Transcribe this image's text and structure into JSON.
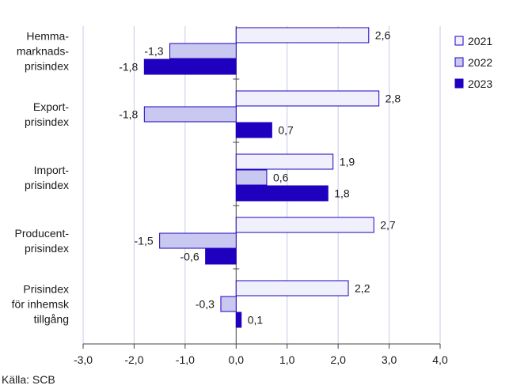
{
  "chart_data": {
    "type": "bar",
    "orientation": "horizontal",
    "categories": [
      [
        "Hemma-",
        "marknads-",
        "prisindex"
      ],
      [
        "Export-",
        "prisindex"
      ],
      [
        "Import-",
        "prisindex"
      ],
      [
        "Producent-",
        "prisindex"
      ],
      [
        "Prisindex",
        "för inhemsk",
        "tillgång"
      ]
    ],
    "series": [
      {
        "name": "2021",
        "values": [
          2.6,
          2.8,
          1.9,
          2.7,
          2.2
        ],
        "labels": [
          "2,6",
          "2,8",
          "1,9",
          "2,7",
          "2,2"
        ],
        "color": "#f0f0fc"
      },
      {
        "name": "2022",
        "values": [
          -1.3,
          -1.8,
          0.6,
          -1.5,
          -0.3
        ],
        "labels": [
          "-1,3",
          "-1,8",
          "0,6",
          "-1,5",
          "-0,3"
        ],
        "color": "#c8c8f0"
      },
      {
        "name": "2023",
        "values": [
          -1.8,
          0.7,
          1.8,
          -0.6,
          0.1
        ],
        "labels": [
          "-1,8",
          "0,7",
          "1,8",
          "-0,6",
          "0,1"
        ],
        "color": "#1e00be"
      }
    ],
    "xlim": [
      -3.0,
      4.0
    ],
    "xticks": [
      -3,
      -2,
      -1,
      0,
      1,
      2,
      3,
      4
    ],
    "xtick_labels": [
      "-3,0",
      "-2,0",
      "-1,0",
      "0,0",
      "1,0",
      "2,0",
      "3,0",
      "4,0"
    ],
    "grid": "vertical",
    "legend": "top-right",
    "bar_outline_color": "#1e00be",
    "grid_color": "#c8c8ec"
  },
  "source": "Källa: SCB"
}
